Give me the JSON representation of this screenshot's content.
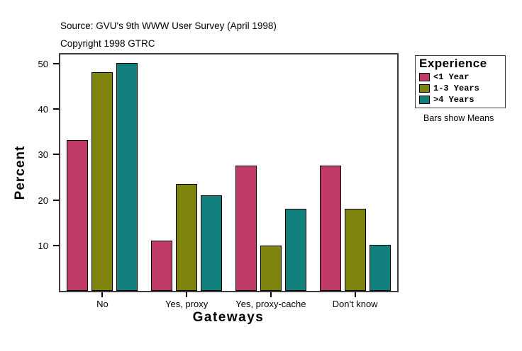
{
  "header": {
    "source_line": "Source: GVU's 9th WWW User Survey (April 1998)",
    "copyright_line": "Copyright 1998 GTRC"
  },
  "chart_data": {
    "type": "bar",
    "title": "",
    "categories": [
      "No",
      "Yes, proxy",
      "Yes, proxy-cache",
      "Don't know"
    ],
    "series": [
      {
        "name": "<1 Year",
        "color": "#BF3A65",
        "values": [
          33.2,
          11.0,
          27.6,
          27.6
        ]
      },
      {
        "name": "1-3 Years",
        "color": "#7E840E",
        "values": [
          48.1,
          23.5,
          10.0,
          18.0
        ]
      },
      {
        "name": ">4 Years",
        "color": "#12807D",
        "values": [
          50.2,
          21.0,
          18.1,
          10.2
        ]
      }
    ],
    "xlabel": "Gateways",
    "ylabel": "Percent",
    "ylim": [
      0,
      52
    ],
    "yticks": [
      10,
      20,
      30,
      40,
      50
    ],
    "grid": false,
    "legend_title": "Experience",
    "legend_position": "right",
    "note": "Bars show Means",
    "bar_outline_color": "#000000",
    "frame_color": "#3c3c3c"
  }
}
